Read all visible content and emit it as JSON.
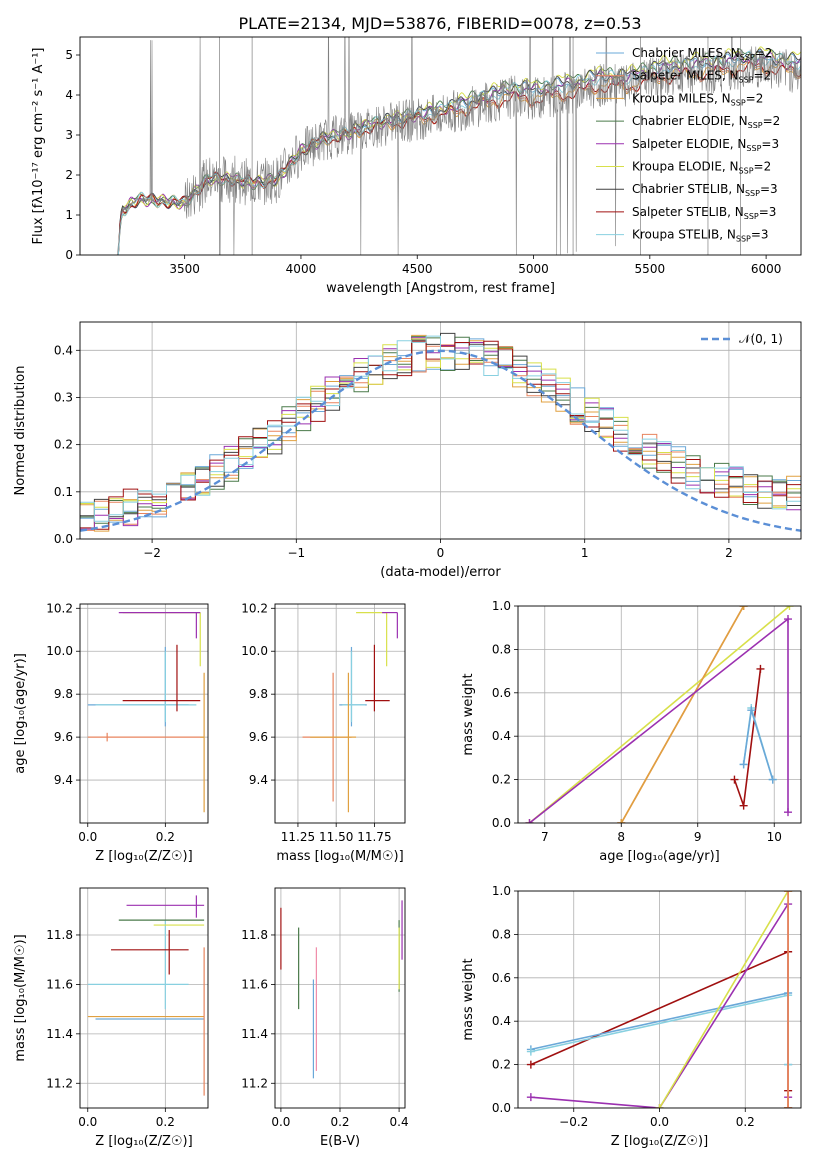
{
  "figure_title": "PLATE=2134, MJD=53876, FIBERID=0078, z=0.53",
  "chart_data": [
    {
      "id": "spectrum",
      "type": "line",
      "xlabel": "wavelength [Angstrom, rest frame]",
      "ylabel": "Flux [fλ10⁻¹⁷ erg cm⁻² s⁻¹ A⁻¹]",
      "xlim": [
        3050,
        6150
      ],
      "ylim": [
        0,
        5.45
      ],
      "xticks": [
        "3500",
        "4000",
        "4500",
        "5000",
        "5500",
        "6000"
      ],
      "yticks": [
        "0",
        "1",
        "2",
        "3",
        "4",
        "5"
      ],
      "grid": false,
      "legend_position": "upper-right",
      "observed": {
        "color": "#808080",
        "x_range": [
          3210,
          6150
        ],
        "envelope_points": [
          [
            3210,
            0
          ],
          [
            3230,
            1.1
          ],
          [
            3300,
            1.4
          ],
          [
            3400,
            1.35
          ],
          [
            3500,
            1.3
          ],
          [
            3600,
            1.9
          ],
          [
            3700,
            1.9
          ],
          [
            3800,
            1.8
          ],
          [
            3900,
            1.9
          ],
          [
            4000,
            2.6
          ],
          [
            4100,
            2.9
          ],
          [
            4200,
            3.0
          ],
          [
            4300,
            3.2
          ],
          [
            4400,
            3.3
          ],
          [
            4500,
            3.4
          ],
          [
            4600,
            3.5
          ],
          [
            4700,
            3.65
          ],
          [
            4800,
            3.8
          ],
          [
            4900,
            3.95
          ],
          [
            5000,
            3.9
          ],
          [
            5100,
            4.0
          ],
          [
            5200,
            4.1
          ],
          [
            5300,
            4.25
          ],
          [
            5400,
            4.2
          ],
          [
            5500,
            4.4
          ],
          [
            5600,
            4.5
          ],
          [
            5700,
            4.55
          ],
          [
            5800,
            4.6
          ],
          [
            5900,
            4.7
          ],
          [
            6000,
            4.7
          ],
          [
            6100,
            4.6
          ]
        ]
      },
      "series": [
        {
          "name": "Chabrier MILES, N_SSP=2",
          "color": "#6aa8d8"
        },
        {
          "name": "Salpeter MILES, N_SSP=2",
          "color": "#e8845e"
        },
        {
          "name": "Kroupa MILES, N_SSP=2",
          "color": "#e0a040"
        },
        {
          "name": "Chabrier ELODIE, N_SSP=2",
          "color": "#4a7a4a"
        },
        {
          "name": "Salpeter ELODIE, N_SSP=3",
          "color": "#9b30b0"
        },
        {
          "name": "Kroupa ELODIE, N_SSP=2",
          "color": "#d8e04a"
        },
        {
          "name": "Chabrier STELIB, N_SSP=3",
          "color": "#404040"
        },
        {
          "name": "Salpeter STELIB, N_SSP=3",
          "color": "#a01010"
        },
        {
          "name": "Kroupa STELIB, N_SSP=3",
          "color": "#88d0e0"
        }
      ],
      "legend_labels": [
        {
          "base": "Chabrier MILES, N",
          "sub": "SSP",
          "suffix": "=2"
        },
        {
          "base": "Salpeter MILES, N",
          "sub": "SSP",
          "suffix": "=2"
        },
        {
          "base": "Kroupa MILES, N",
          "sub": "SSP",
          "suffix": "=2"
        },
        {
          "base": "Chabrier ELODIE, N",
          "sub": "SSP",
          "suffix": "=2"
        },
        {
          "base": "Salpeter ELODIE, N",
          "sub": "SSP",
          "suffix": "=3"
        },
        {
          "base": "Kroupa ELODIE, N",
          "sub": "SSP",
          "suffix": "=2"
        },
        {
          "base": "Chabrier STELIB, N",
          "sub": "SSP",
          "suffix": "=3"
        },
        {
          "base": "Salpeter STELIB, N",
          "sub": "SSP",
          "suffix": "=3"
        },
        {
          "base": "Kroupa STELIB, N",
          "sub": "SSP",
          "suffix": "=3"
        }
      ]
    },
    {
      "id": "residuals",
      "type": "line",
      "xlabel": "(data-model)/error",
      "ylabel": "Normed distribution",
      "xlim": [
        -2.5,
        2.5
      ],
      "ylim": [
        0,
        0.46
      ],
      "xticks": [
        "−2",
        "−1",
        "0",
        "1",
        "2"
      ],
      "yticks": [
        "0.0",
        "0.1",
        "0.2",
        "0.3",
        "0.4"
      ],
      "grid": true,
      "legend_position": "upper-right",
      "reference": {
        "name": "𝒩(0, 1)",
        "color": "#5b8fd6",
        "mean": 0,
        "sigma": 1
      },
      "histogram_bin_width": 0.1
    },
    {
      "id": "age-vs-Z",
      "type": "scatter",
      "xlabel": "Z [log₁₀(Z/Z☉)]",
      "ylabel": "age  [log₁₀(age/yr)]",
      "xlim": [
        -0.02,
        0.31
      ],
      "ylim": [
        9.2,
        10.22
      ],
      "xticks": [
        "0.0",
        "0.2"
      ],
      "yticks": [
        "9.4",
        "9.6",
        "9.8",
        "10.0",
        "10.2"
      ],
      "grid": true,
      "points": [
        {
          "x": 0.05,
          "y": 9.6,
          "xerr": [
            0.05,
            0.25
          ],
          "yerr": [
            0.02,
            0.02
          ],
          "color": "#e8845e"
        },
        {
          "x": 0.2,
          "y": 9.75,
          "xerr": [
            0.2,
            0.06
          ],
          "yerr": [
            0.1,
            0.27
          ],
          "color": "#6aa8d8"
        },
        {
          "x": 0.2,
          "y": 9.75,
          "xerr": [
            0.18,
            0.08
          ],
          "yerr": [
            0.08,
            0.25
          ],
          "color": "#88d0e0"
        },
        {
          "x": 0.23,
          "y": 9.77,
          "xerr": [
            0.14,
            0.06
          ],
          "yerr": [
            0.05,
            0.26
          ],
          "color": "#a01010"
        },
        {
          "x": 0.29,
          "y": 10.18,
          "xerr": [
            0.2,
            0.0
          ],
          "yerr": [
            0.25,
            0.0
          ],
          "color": "#d8e04a"
        },
        {
          "x": 0.28,
          "y": 10.18,
          "xerr": [
            0.2,
            0.01
          ],
          "yerr": [
            0.12,
            0.0
          ],
          "color": "#9b30b0"
        },
        {
          "x": 0.3,
          "y": 9.6,
          "xerr": [
            0.01,
            0.0
          ],
          "yerr": [
            0.35,
            0.3
          ],
          "color": "#e0a040"
        }
      ]
    },
    {
      "id": "age-vs-mass",
      "type": "scatter",
      "xlabel": "mass [log₁₀(M/M☉)]",
      "ylabel": "",
      "xlim": [
        11.1,
        11.95
      ],
      "ylim": [
        9.2,
        10.22
      ],
      "xticks": [
        "11.25",
        "11.50",
        "11.75"
      ],
      "yticks": [
        "9.4",
        "9.6",
        "9.8",
        "10.0",
        "10.2"
      ],
      "grid": true,
      "points": [
        {
          "x": 11.48,
          "y": 9.6,
          "xerr": [
            0.2,
            0.12
          ],
          "yerr": [
            0.3,
            0.3
          ],
          "color": "#e8845e"
        },
        {
          "x": 11.6,
          "y": 9.75,
          "xerr": [
            0.08,
            0.1
          ],
          "yerr": [
            0.1,
            0.27
          ],
          "color": "#6aa8d8"
        },
        {
          "x": 11.6,
          "y": 9.75,
          "xerr": [
            0.06,
            0.09
          ],
          "yerr": [
            0.08,
            0.25
          ],
          "color": "#88d0e0"
        },
        {
          "x": 11.75,
          "y": 9.77,
          "xerr": [
            0.06,
            0.1
          ],
          "yerr": [
            0.05,
            0.26
          ],
          "color": "#a01010"
        },
        {
          "x": 11.83,
          "y": 10.18,
          "xerr": [
            0.2,
            0.0
          ],
          "yerr": [
            0.25,
            0.0
          ],
          "color": "#d8e04a"
        },
        {
          "x": 11.9,
          "y": 10.18,
          "xerr": [
            0.1,
            0.0
          ],
          "yerr": [
            0.12,
            0.0
          ],
          "color": "#9b30b0"
        },
        {
          "x": 11.58,
          "y": 9.6,
          "xerr": [
            0.25,
            0.05
          ],
          "yerr": [
            0.35,
            0.3
          ],
          "color": "#e0a040"
        }
      ]
    },
    {
      "id": "weight-vs-age",
      "type": "line",
      "xlabel": "age  [log₁₀(age/yr)]",
      "ylabel": "mass weight",
      "xlim": [
        6.65,
        10.35
      ],
      "ylim": [
        0,
        1
      ],
      "xticks": [
        "7",
        "8",
        "9",
        "10"
      ],
      "yticks": [
        "0.0",
        "0.2",
        "0.4",
        "0.6",
        "0.8",
        "1.0"
      ],
      "grid": true,
      "series": [
        {
          "color": "#d8e04a",
          "x": [
            6.8,
            10.2
          ],
          "y": [
            0.0,
            1.0
          ]
        },
        {
          "color": "#e8845e",
          "x": [
            8.0,
            9.6
          ],
          "y": [
            0.0,
            1.0
          ]
        },
        {
          "color": "#e0a040",
          "x": [
            8.0,
            9.6
          ],
          "y": [
            0.0,
            1.0
          ]
        },
        {
          "color": "#9b30b0",
          "x": [
            6.8,
            10.18,
            10.18
          ],
          "y": [
            0.0,
            0.94,
            0.05
          ]
        },
        {
          "color": "#a01010",
          "x": [
            9.48,
            9.6,
            9.82
          ],
          "y": [
            0.2,
            0.08,
            0.71
          ]
        },
        {
          "color": "#88d0e0",
          "x": [
            9.6,
            9.7,
            9.98
          ],
          "y": [
            0.27,
            0.53,
            0.2
          ]
        },
        {
          "color": "#6aa8d8",
          "x": [
            9.6,
            9.7,
            9.98
          ],
          "y": [
            0.27,
            0.52,
            0.2
          ]
        }
      ]
    },
    {
      "id": "mass-vs-Z",
      "type": "scatter",
      "xlabel": "Z [log₁₀(Z/Z☉)]",
      "ylabel": "mass [log₁₀(M/M☉)]",
      "xlim": [
        -0.02,
        0.31
      ],
      "ylim": [
        11.1,
        11.99
      ],
      "xticks": [
        "0.0",
        "0.2"
      ],
      "yticks": [
        "11.2",
        "11.4",
        "11.6",
        "11.8"
      ],
      "grid": true,
      "points": [
        {
          "x": 0.0,
          "y": 11.47,
          "xerr": [
            0.0,
            0.3
          ],
          "yerr": [
            0.0,
            0.0
          ],
          "color": "#e0a040"
        },
        {
          "x": 0.02,
          "y": 11.46,
          "xerr": [
            0.0,
            0.28
          ],
          "yerr": [
            0.0,
            0.0
          ],
          "color": "#6aa8d8"
        },
        {
          "x": 0.2,
          "y": 11.6,
          "xerr": [
            0.2,
            0.06
          ],
          "yerr": [
            0.1,
            0.26
          ],
          "color": "#88d0e0"
        },
        {
          "x": 0.21,
          "y": 11.74,
          "xerr": [
            0.15,
            0.05
          ],
          "yerr": [
            0.1,
            0.08
          ],
          "color": "#a01010"
        },
        {
          "x": 0.28,
          "y": 11.92,
          "xerr": [
            0.18,
            0.02
          ],
          "yerr": [
            0.05,
            0.04
          ],
          "color": "#9b30b0"
        },
        {
          "x": 0.29,
          "y": 11.84,
          "xerr": [
            0.12,
            0.01
          ],
          "yerr": [
            0.0,
            0.0
          ],
          "color": "#d8e04a"
        },
        {
          "x": 0.2,
          "y": 11.86,
          "xerr": [
            0.12,
            0.1
          ],
          "yerr": [
            0.0,
            0.0
          ],
          "color": "#4a7a4a"
        },
        {
          "x": 0.3,
          "y": 11.3,
          "xerr": [
            0.0,
            0.0
          ],
          "yerr": [
            0.15,
            0.45
          ],
          "color": "#e8845e"
        }
      ]
    },
    {
      "id": "mass-vs-EBV",
      "type": "scatter",
      "xlabel": "E(B-V)",
      "ylabel": "",
      "xlim": [
        -0.02,
        0.42
      ],
      "ylim": [
        11.1,
        11.99
      ],
      "xticks": [
        "0.0",
        "0.2",
        "0.4"
      ],
      "yticks": [
        "11.2",
        "11.4",
        "11.6",
        "11.8"
      ],
      "grid": true,
      "points": [
        {
          "x": 0.0,
          "y": 11.78,
          "xerr": [
            0,
            0
          ],
          "yerr": [
            0.12,
            0.13
          ],
          "color": "#a01010"
        },
        {
          "x": 0.06,
          "y": 11.66,
          "xerr": [
            0,
            0
          ],
          "yerr": [
            0.16,
            0.17
          ],
          "color": "#4a7a4a"
        },
        {
          "x": 0.11,
          "y": 11.42,
          "xerr": [
            0,
            0
          ],
          "yerr": [
            0.2,
            0.2
          ],
          "color": "#6aa8d8"
        },
        {
          "x": 0.12,
          "y": 11.45,
          "xerr": [
            0,
            0
          ],
          "yerr": [
            0.2,
            0.3
          ],
          "color": "#f08aa8"
        },
        {
          "x": 0.4,
          "y": 11.72,
          "xerr": [
            0,
            0
          ],
          "yerr": [
            0.15,
            0.14
          ],
          "color": "#4a7a4a"
        },
        {
          "x": 0.41,
          "y": 11.8,
          "xerr": [
            0,
            0
          ],
          "yerr": [
            0.1,
            0.14
          ],
          "color": "#9b30b0"
        },
        {
          "x": 0.4,
          "y": 11.7,
          "xerr": [
            0,
            0
          ],
          "yerr": [
            0.12,
            0.13
          ],
          "color": "#d8e04a"
        }
      ]
    },
    {
      "id": "weight-vs-Z",
      "type": "line",
      "xlabel": "Z [log₁₀(Z/Z☉)]",
      "ylabel": "mass weight",
      "xlim": [
        -0.33,
        0.33
      ],
      "ylim": [
        0,
        1
      ],
      "xticks": [
        "−0.2",
        "0.0",
        "0.2"
      ],
      "yticks": [
        "0.0",
        "0.2",
        "0.4",
        "0.6",
        "0.8",
        "1.0"
      ],
      "grid": true,
      "series": [
        {
          "color": "#a01010",
          "x": [
            -0.3,
            0.3,
            0.3,
            0.3
          ],
          "y": [
            0.2,
            0.72,
            0.08,
            0.0
          ]
        },
        {
          "color": "#6aa8d8",
          "x": [
            -0.3,
            0.3,
            0.3
          ],
          "y": [
            0.27,
            0.53,
            0.2
          ]
        },
        {
          "color": "#88d0e0",
          "x": [
            -0.3,
            0.3,
            0.3
          ],
          "y": [
            0.26,
            0.52,
            0.2
          ]
        },
        {
          "color": "#9b30b0",
          "x": [
            -0.3,
            0.0,
            0.3,
            0.3
          ],
          "y": [
            0.05,
            0.0,
            0.94,
            0.05
          ]
        },
        {
          "color": "#d8e04a",
          "x": [
            0.0,
            0.3
          ],
          "y": [
            0.0,
            1.0
          ]
        },
        {
          "color": "#e0a040",
          "x": [
            0.3,
            0.3
          ],
          "y": [
            0.0,
            1.0
          ]
        },
        {
          "color": "#e8845e",
          "x": [
            0.3,
            0.3
          ],
          "y": [
            0.0,
            1.0
          ]
        }
      ]
    }
  ]
}
